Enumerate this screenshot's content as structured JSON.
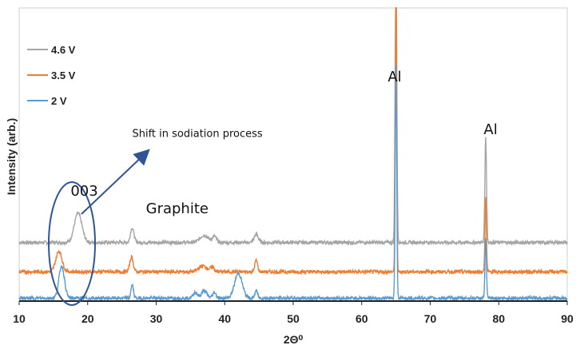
{
  "chart_data": {
    "type": "line",
    "xlabel": "2Θ⁰",
    "ylabel": "Intensity (arb.)",
    "xlim": [
      10,
      90
    ],
    "x_ticks": [
      10,
      20,
      30,
      40,
      50,
      60,
      70,
      80,
      90
    ],
    "grid": false,
    "legend_position": "top-left",
    "series": [
      {
        "name": "4.6 V",
        "color": "#a5a5a5",
        "baseline": 0.2,
        "peaks": [
          [
            18.6,
            0.1,
            0.55
          ],
          [
            26.5,
            0.05,
            0.25
          ],
          [
            37.0,
            0.025,
            0.6
          ],
          [
            38.5,
            0.02,
            0.3
          ],
          [
            44.6,
            0.028,
            0.3
          ],
          [
            65.0,
            0.96,
            0.12
          ],
          [
            78.1,
            0.36,
            0.12
          ]
        ]
      },
      {
        "name": "3.5 V",
        "color": "#ed7d31",
        "baseline": 0.1,
        "peaks": [
          [
            15.8,
            0.07,
            0.45
          ],
          [
            26.4,
            0.05,
            0.25
          ],
          [
            36.8,
            0.02,
            0.6
          ],
          [
            38.2,
            0.015,
            0.3
          ],
          [
            44.6,
            0.04,
            0.2
          ],
          [
            65.0,
            1.05,
            0.1
          ],
          [
            78.1,
            0.26,
            0.1
          ]
        ]
      },
      {
        "name": "2 V",
        "color": "#5b9bd5",
        "baseline": 0.01,
        "peaks": [
          [
            16.2,
            0.11,
            0.4
          ],
          [
            26.5,
            0.045,
            0.18
          ],
          [
            35.7,
            0.02,
            0.3
          ],
          [
            37.0,
            0.025,
            0.4
          ],
          [
            38.5,
            0.02,
            0.25
          ],
          [
            42.0,
            0.085,
            0.55
          ],
          [
            44.6,
            0.025,
            0.2
          ],
          [
            65.0,
            0.8,
            0.11
          ],
          [
            78.1,
            0.2,
            0.11
          ]
        ]
      }
    ],
    "annotations": [
      {
        "text": "003",
        "x": 17.5,
        "y": 0.36
      },
      {
        "text": "Graphite",
        "x": 28.5,
        "y": 0.3
      },
      {
        "text": "Al",
        "x": 63.8,
        "y": 0.75
      },
      {
        "text": "Al",
        "x": 77.8,
        "y": 0.57
      },
      {
        "text": "Shift in sodiation process",
        "x": 26.5,
        "y": 0.56
      }
    ]
  }
}
